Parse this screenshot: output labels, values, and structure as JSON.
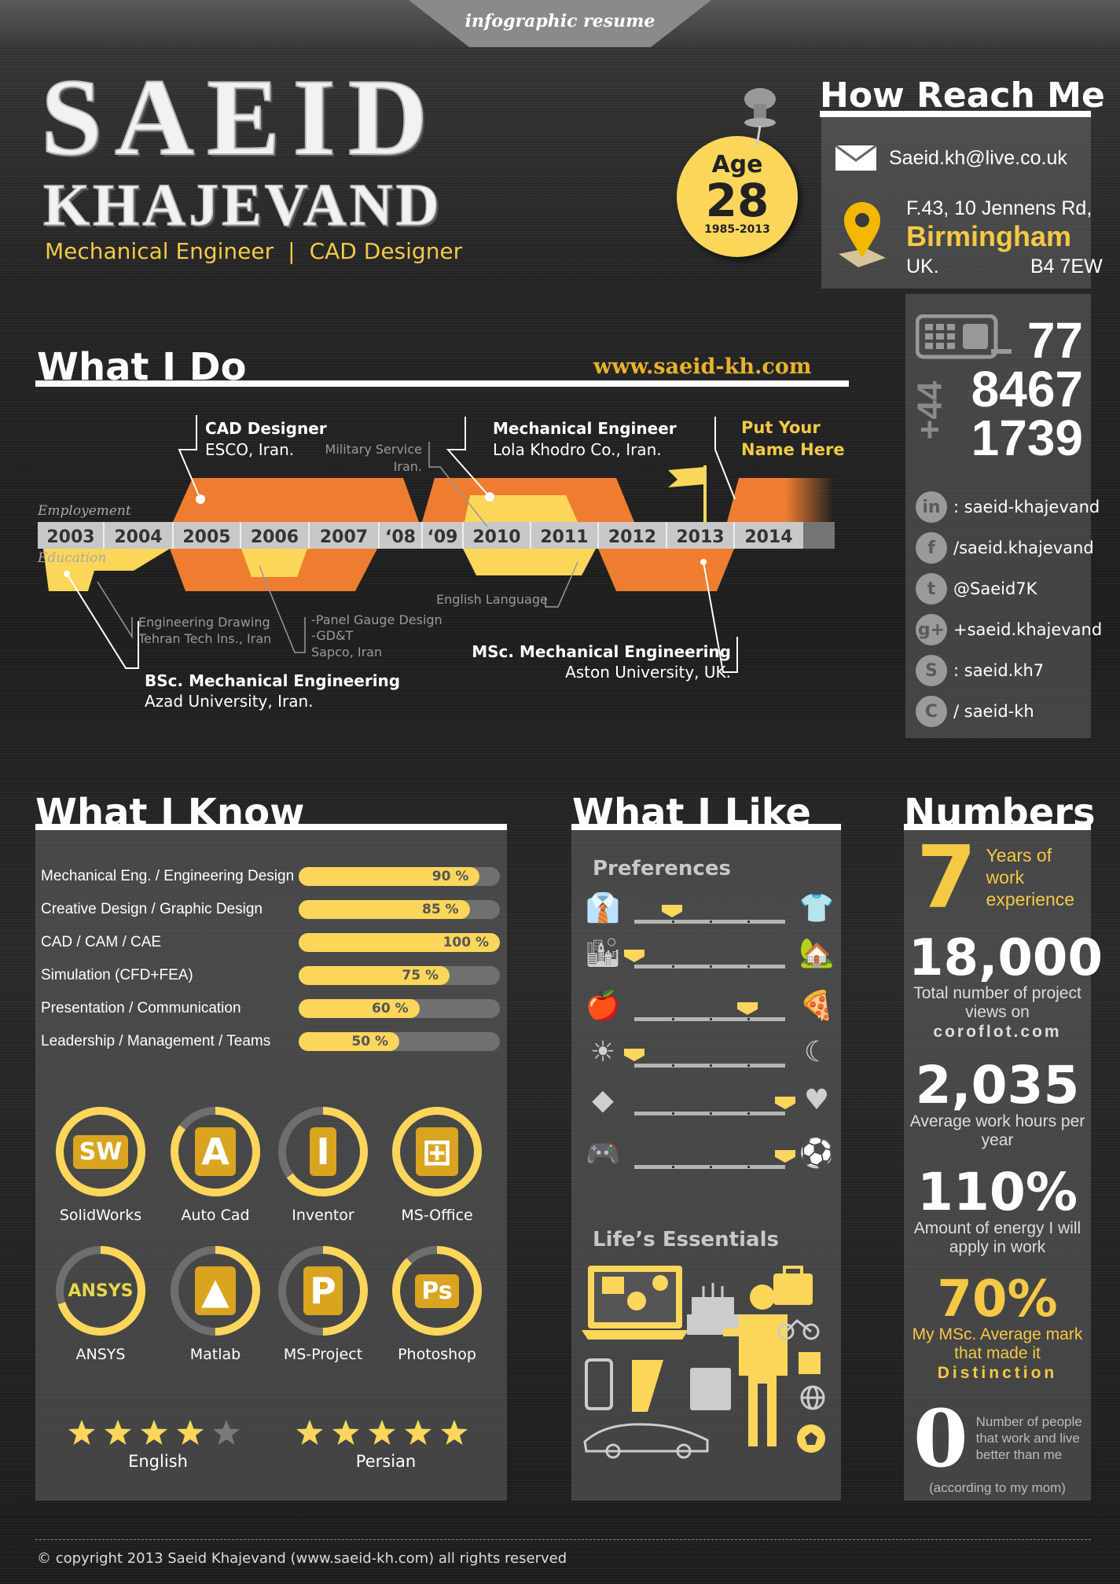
{
  "banner": "infographic resume",
  "header": {
    "first_name": "SAEID",
    "last_name": "KHAJEVAND",
    "roles": [
      "Mechanical Engineer",
      "CAD Designer"
    ],
    "role_separator": "|"
  },
  "age": {
    "label": "Age",
    "value": "28",
    "range": "1985-2013",
    "icon": "push-pin-icon"
  },
  "contact": {
    "title": "How Reach Me",
    "email": "Saeid.kh@live.co.uk",
    "email_icon": "envelope-icon",
    "address_line1": "F.43, 10 Jennens Rd,",
    "city": "Birmingham",
    "country": "UK.",
    "postcode": "B4 7EW",
    "location_icon": "map-pin-icon",
    "phone": {
      "prefix": "+44",
      "parts": [
        "77",
        "8467",
        "1739"
      ],
      "icon": "phone-icon"
    },
    "socials": [
      {
        "icon": "linkedin-icon",
        "glyph": "in",
        "text": ": saeid-khajevand"
      },
      {
        "icon": "facebook-icon",
        "glyph": "f",
        "text": "/saeid.khajevand"
      },
      {
        "icon": "twitter-icon",
        "glyph": "t",
        "text": "@Saeid7K"
      },
      {
        "icon": "google-plus-icon",
        "glyph": "g+",
        "text": "+saeid.khajevand"
      },
      {
        "icon": "skype-icon",
        "glyph": "S",
        "text": ": saeid.kh7"
      },
      {
        "icon": "coroflot-icon",
        "glyph": "C",
        "text": "/ saeid-kh"
      }
    ]
  },
  "what_i_do": {
    "title": "What I Do",
    "website": "www.saeid-kh.com",
    "employment_label": "Employement",
    "education_label": "Education",
    "years": [
      "2003",
      "2004",
      "2005",
      "2006",
      "2007",
      "‘08",
      "‘09",
      "2010",
      "2011",
      "2012",
      "2013",
      "2014"
    ],
    "employment": [
      {
        "title": "CAD Designer",
        "place": "ESCO, Iran."
      },
      {
        "title": "Military Service",
        "place": "Iran."
      },
      {
        "title": "Mechanical Engineer",
        "place": "Lola Khodro Co., Iran."
      },
      {
        "title": "Put Your",
        "place": "Name Here"
      }
    ],
    "education": [
      {
        "title": "BSc. Mechanical Engineering",
        "place": "Azad University,  Iran."
      },
      {
        "title": "Engineering Drawing",
        "place": "Tehran Tech Ins., Iran"
      },
      {
        "lines": [
          "-Panel Gauge Design",
          "-GD&T",
          "Sapco, Iran"
        ]
      },
      {
        "title": "English Language"
      },
      {
        "title": "MSc. Mechanical Engineering",
        "place": "Aston University,  UK."
      }
    ],
    "colors": {
      "orange": "#ee7d2f",
      "yellow": "#fbd65a",
      "year_bar": "#c8c8c8"
    }
  },
  "what_i_know": {
    "title": "What I Know",
    "skills": [
      {
        "label": "Mechanical Eng. / Engineering Design",
        "percent": 90
      },
      {
        "label": "Creative Design / Graphic Design",
        "percent": 85
      },
      {
        "label": "CAD / CAM / CAE",
        "percent": 100
      },
      {
        "label": "Simulation (CFD+FEA)",
        "percent": 75
      },
      {
        "label": "Presentation / Communication",
        "percent": 60
      },
      {
        "label": "Leadership / Management / Teams",
        "percent": 50
      }
    ],
    "software": [
      {
        "name": "SolidWorks",
        "level": 100,
        "icon": "solidworks-logo-icon",
        "logo": "SW"
      },
      {
        "name": "Auto Cad",
        "level": 85,
        "icon": "autocad-logo-icon",
        "logo": "A"
      },
      {
        "name": "Inventor",
        "level": 65,
        "icon": "inventor-logo-icon",
        "logo": "I"
      },
      {
        "name": "MS-Office",
        "level": 100,
        "icon": "ms-office-logo-icon",
        "logo": "⊞"
      },
      {
        "name": "ANSYS",
        "level": 70,
        "icon": "ansys-logo-icon",
        "logo": "ANSYS"
      },
      {
        "name": "Matlab",
        "level": 50,
        "icon": "matlab-logo-icon",
        "logo": "▲"
      },
      {
        "name": "MS-Project",
        "level": 50,
        "icon": "ms-project-logo-icon",
        "logo": "P"
      },
      {
        "name": "Photoshop",
        "level": 88,
        "icon": "photoshop-logo-icon",
        "logo": "Ps"
      }
    ],
    "languages": [
      {
        "name": "English",
        "stars": 4,
        "max": 5
      },
      {
        "name": "Persian",
        "stars": 5,
        "max": 5
      }
    ]
  },
  "what_i_like": {
    "title": "What I Like",
    "preferences_title": "Preferences",
    "preferences": [
      {
        "left_icon": "suit-icon",
        "left_glyph": "👔",
        "right_icon": "t-shirt-icon",
        "right_glyph": "👕",
        "value": 0.25
      },
      {
        "left_icon": "city-icon",
        "left_glyph": "🏙",
        "right_icon": "country-house-icon",
        "right_glyph": "🏡",
        "value": 0
      },
      {
        "left_icon": "apple-icon",
        "left_glyph": "🍎",
        "right_icon": "pizza-icon",
        "right_glyph": "🍕",
        "value": 0.75
      },
      {
        "left_icon": "sun-icon",
        "left_glyph": "☀",
        "right_icon": "moon-icon",
        "right_glyph": "☾",
        "value": 0
      },
      {
        "left_icon": "diamond-icon",
        "left_glyph": "◆",
        "right_icon": "heart-icon",
        "right_glyph": "♥",
        "value": 1
      },
      {
        "left_icon": "gamepad-icon",
        "left_glyph": "🎮",
        "right_icon": "football-player-icon",
        "right_glyph": "⚽",
        "value": 1
      }
    ],
    "essentials_title": "Life’s Essentials",
    "essentials_icons": [
      "laptop-icon",
      "cake-icon",
      "suitcase-icon",
      "person-icon",
      "bicycle-icon",
      "smartphone-icon",
      "ruler-icon",
      "calendar-icon",
      "puzzle-icon",
      "globe-icon",
      "car-icon",
      "soccer-ball-icon"
    ]
  },
  "numbers": {
    "title": "Numbers",
    "items": [
      {
        "value": "7",
        "caption": "Years of work experience",
        "color": "#f5c945"
      },
      {
        "value": "18,000",
        "caption": "Total number of project views on",
        "emphasis": "coroflot.com",
        "color": "#ffffff"
      },
      {
        "value": "2,035",
        "caption": "Average work hours per year",
        "color": "#ffffff"
      },
      {
        "value": "110%",
        "caption": "Amount of energy I will apply in work",
        "color": "#ffffff"
      },
      {
        "value": "70%",
        "caption": "My MSc. Average mark that made it",
        "emphasis": "Distinction",
        "color": "#f5c945"
      },
      {
        "value": "0",
        "caption": "Number of people that work and live better than me",
        "note": "(according to my mom)",
        "color": "#ffffff"
      }
    ]
  },
  "footer": "© copyright 2013 Saeid Khajevand (www.saeid-kh.com) all rights reserved"
}
